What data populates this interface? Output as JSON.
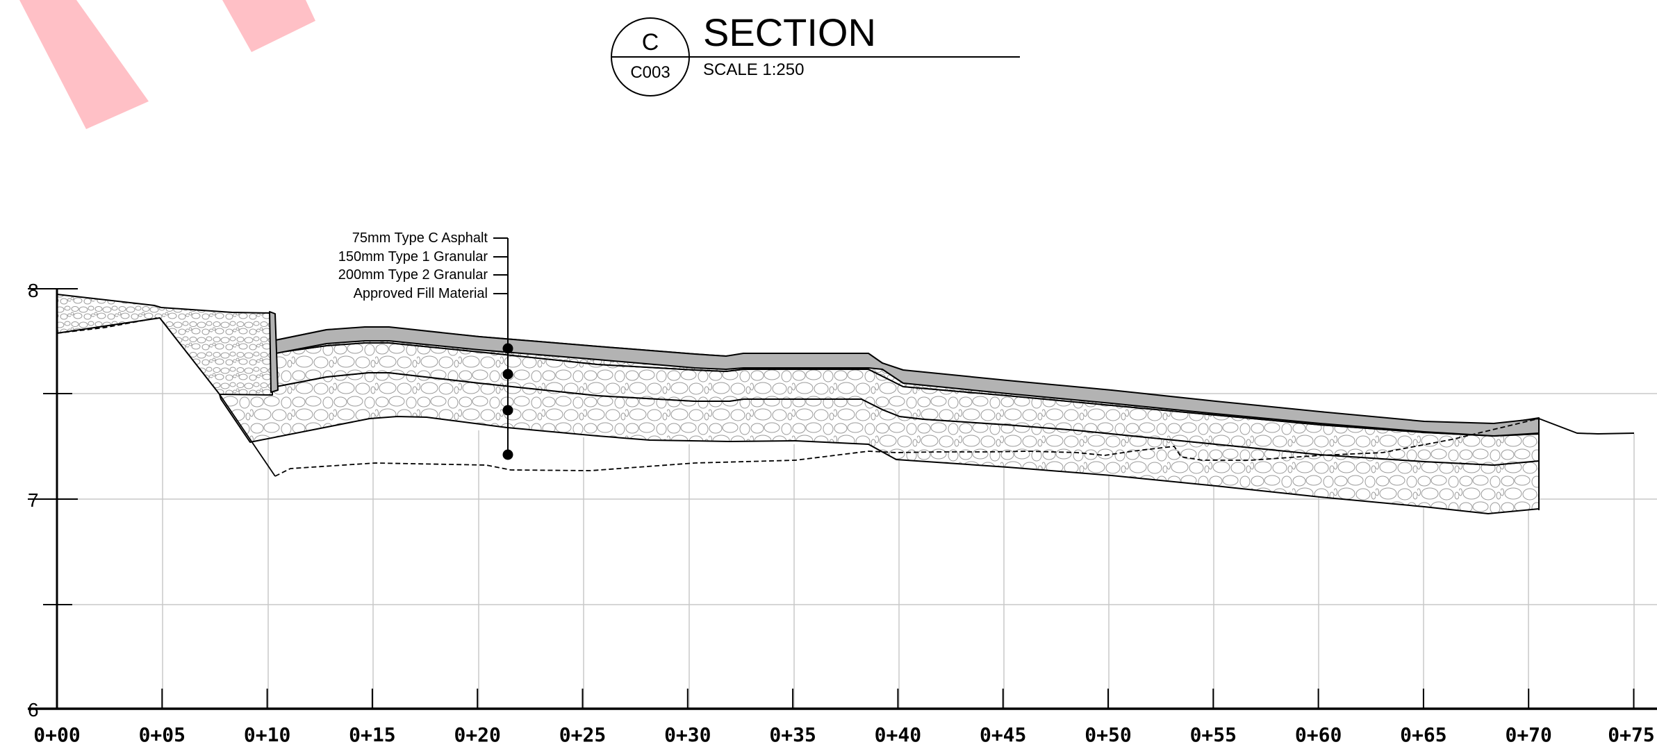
{
  "title_block": {
    "section_letter": "C",
    "sheet_ref": "C003",
    "title": "SECTION",
    "scale": "SCALE 1:250"
  },
  "callouts": [
    "75mm Type C Asphalt",
    "150mm Type 1 Granular",
    "200mm Type 2 Granular",
    "Approved Fill Material"
  ],
  "elevation_labels": [
    "8",
    "7",
    "6"
  ],
  "chainage_labels": [
    "0+00",
    "0+05",
    "0+10",
    "0+15",
    "0+20",
    "0+25",
    "0+30",
    "0+35",
    "0+40",
    "0+45",
    "0+50",
    "0+55",
    "0+60",
    "0+65",
    "0+70",
    "0+75"
  ],
  "colors": {
    "asphalt": "#b3b3b3",
    "grid": "#c8c8c8",
    "line": "#000000",
    "markup": "#ffc0c6",
    "stone": "#9a9a9a"
  }
}
